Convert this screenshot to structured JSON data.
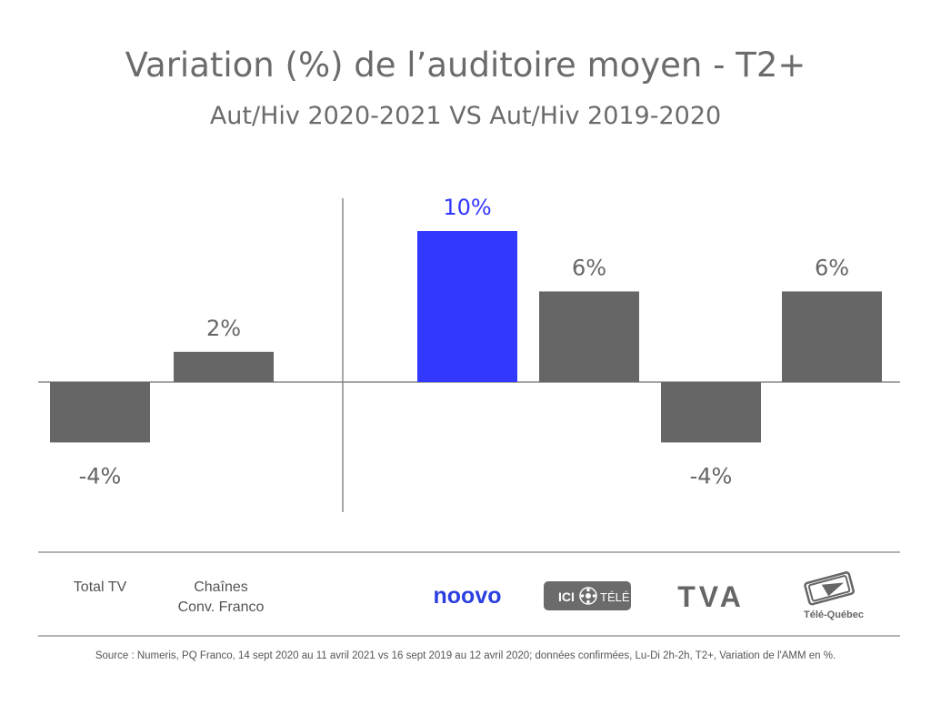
{
  "chart_data": {
    "type": "bar",
    "title": "Variation (%) de l’auditoire moyen - T2+",
    "subtitle": "Aut/Hiv 2020-2021 VS Aut/Hiv 2019-2020",
    "categories": [
      "Total TV",
      "Chaînes Conv. Franco",
      "noovo",
      "ICI Télé",
      "TVA",
      "Télé-Québec"
    ],
    "values": [
      -4,
      2,
      10,
      6,
      -4,
      6
    ],
    "value_labels": [
      "-4%",
      "2%",
      "10%",
      "6%",
      "-4%",
      "6%"
    ],
    "bar_colors": [
      "#666666",
      "#666666",
      "#3338ff",
      "#666666",
      "#666666",
      "#666666"
    ],
    "label_colors": [
      "#666666",
      "#666666",
      "#3338ff",
      "#666666",
      "#666666",
      "#666666"
    ],
    "ylim": [
      -8,
      12
    ],
    "grid": false,
    "legend": "none"
  },
  "category_labels": {
    "total_tv": "Total TV",
    "chaines_line1": "Chaînes",
    "chaines_line2": "Conv. Franco"
  },
  "logos": {
    "noovo": {
      "text": "noovo",
      "color": "#2c3fe0"
    },
    "ici_tele": {
      "text_left": "ICI",
      "text_right": "TÉLÉ",
      "bg_color": "#6b6b6b",
      "text_color": "#ffffff"
    },
    "tva": {
      "text": "TVA",
      "color": "#666666"
    },
    "tele_quebec": {
      "text": "Télé-Québec",
      "color": "#666666"
    }
  },
  "source": "Source : Numeris, PQ Franco, 14 sept 2020 au 11  avril 2021 vs 16 sept 2019 au 12 avril 2020; données confirmées, Lu-Di 2h-2h, T2+, Variation de l'AMM en %."
}
